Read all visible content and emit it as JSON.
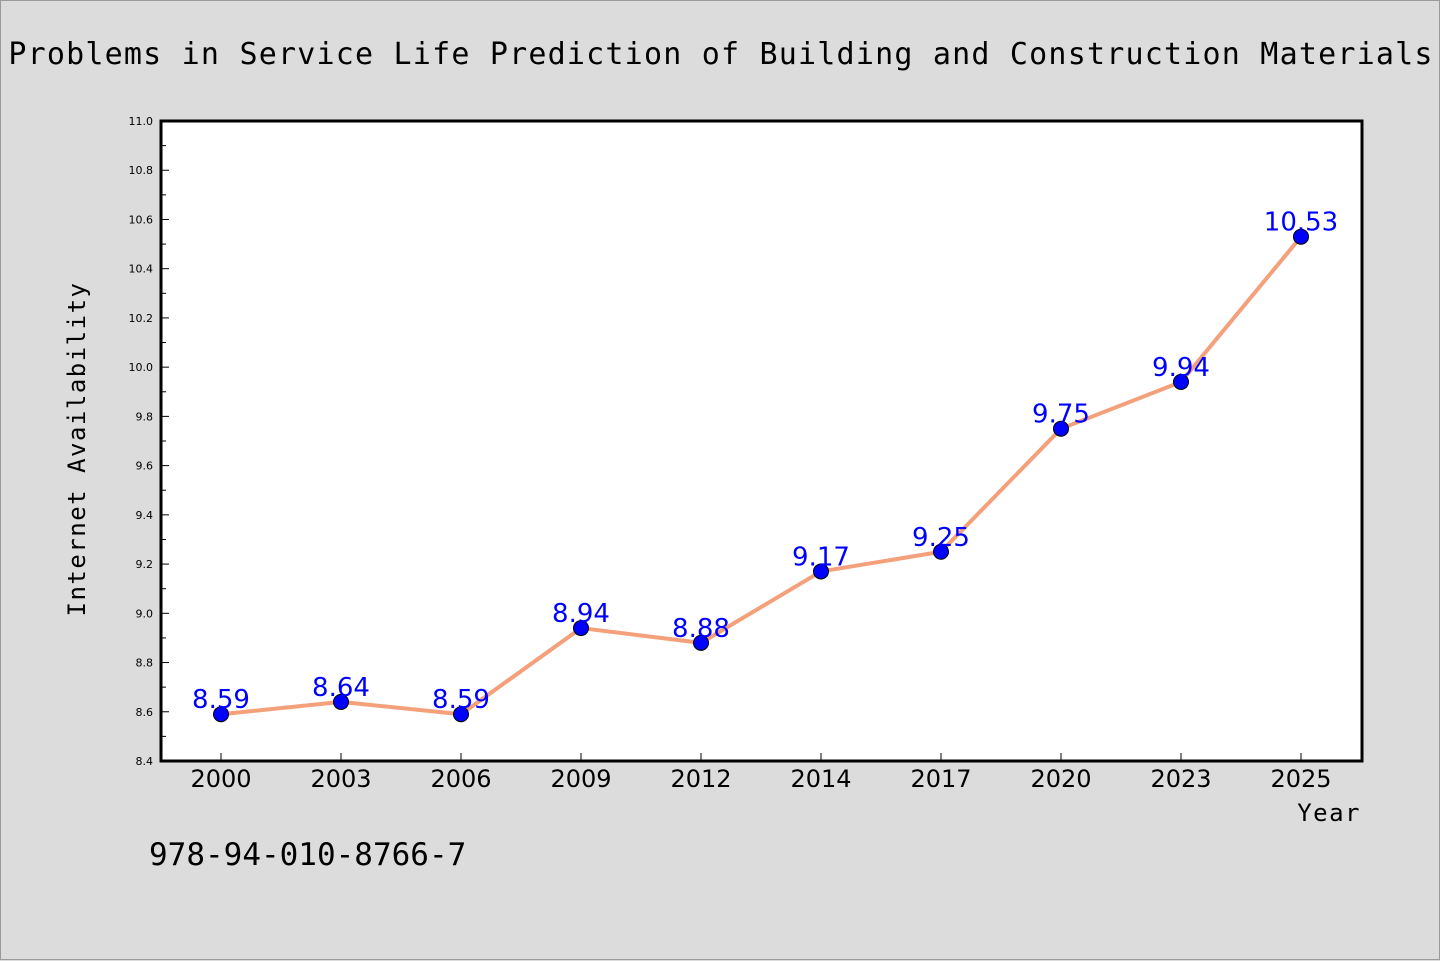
{
  "chart_data": {
    "type": "line",
    "title": "Problems in Service Life Prediction of Building and Construction Materials",
    "xlabel": "Year",
    "ylabel": "Internet Availability",
    "categories": [
      "2000",
      "2003",
      "2006",
      "2009",
      "2012",
      "2014",
      "2017",
      "2020",
      "2023",
      "2025"
    ],
    "values": [
      8.59,
      8.64,
      8.59,
      8.94,
      8.88,
      9.17,
      9.25,
      9.75,
      9.94,
      10.53
    ],
    "data_labels": [
      "8.59",
      "8.64",
      "8.59",
      "8.94",
      "8.88",
      "9.17",
      "9.25",
      "9.75",
      "9.94",
      "10.53"
    ],
    "ylim": [
      8.4,
      11.0
    ],
    "yticks": [
      "8.4",
      "8.6",
      "8.8",
      "9.0",
      "9.2",
      "9.4",
      "9.6",
      "9.8",
      "10.0",
      "10.2",
      "10.4",
      "10.6",
      "10.8",
      "11.0"
    ],
    "grid": false,
    "line_color": "#f4a07a",
    "marker_color": "#0000ff",
    "label_color": "#0000ff"
  },
  "footer": {
    "isbn": "978-94-010-8766-7"
  }
}
